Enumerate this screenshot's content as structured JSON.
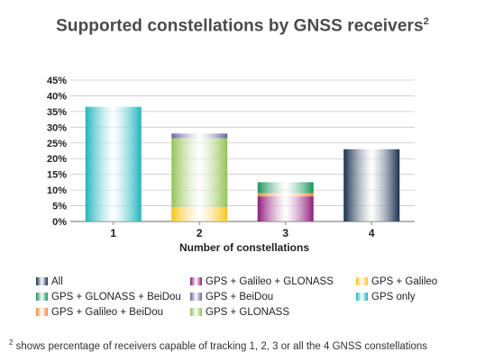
{
  "title": "Supported constellations by GNSS receivers",
  "title_superscript": "2",
  "footnote": {
    "marker": "2",
    "text": " shows percentage of receivers capable of tracking 1, 2, 3 or all the 4 GNSS constellations"
  },
  "chart_data": {
    "type": "bar",
    "stacked": true,
    "categories": [
      "1",
      "2",
      "3",
      "4"
    ],
    "xlabel": "Number of constellations",
    "ylabel": "",
    "ylim": [
      0,
      45
    ],
    "yticks": [
      "0%",
      "5%",
      "10%",
      "15%",
      "20%",
      "25%",
      "30%",
      "35%",
      "40%",
      "45%"
    ],
    "ytick_values": [
      0,
      5,
      10,
      15,
      20,
      25,
      30,
      35,
      40,
      45
    ],
    "grid": true,
    "legend_position": "bottom",
    "series": [
      {
        "name": "GPS only",
        "color": "#1fb4bd",
        "values": [
          36.5,
          0,
          0,
          0
        ]
      },
      {
        "name": "GPS + Galileo",
        "color": "#f8c51c",
        "values": [
          0,
          4.5,
          0,
          0
        ]
      },
      {
        "name": "GPS + GLONASS",
        "color": "#94c356",
        "values": [
          0,
          22.0,
          0,
          0
        ]
      },
      {
        "name": "GPS + BeiDou",
        "color": "#6a66a0",
        "values": [
          0,
          1.5,
          0,
          0
        ]
      },
      {
        "name": "GPS + Galileo + GLONASS",
        "color": "#8f1a7c",
        "values": [
          0,
          0,
          8.0,
          0
        ]
      },
      {
        "name": "GPS + Galileo + BeiDou",
        "color": "#f08a3b",
        "values": [
          0,
          0,
          1.0,
          0
        ]
      },
      {
        "name": "GPS + GLONASS + BeiDou",
        "color": "#16955c",
        "values": [
          0,
          0,
          3.5,
          0
        ]
      },
      {
        "name": "All",
        "color": "#17304e",
        "values": [
          0,
          0,
          0,
          23.0
        ]
      }
    ],
    "legend_order": [
      [
        "All",
        "GPS + Galileo + GLONASS",
        "GPS + Galileo"
      ],
      [
        "GPS + GLONASS + BeiDou",
        "GPS + BeiDou",
        "GPS only"
      ],
      [
        "GPS + Galileo + BeiDou",
        "GPS + GLONASS"
      ]
    ]
  }
}
